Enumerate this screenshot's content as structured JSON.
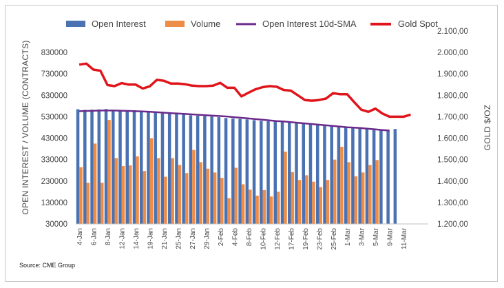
{
  "chart_data": {
    "type": "bar",
    "title": "",
    "source": "Source: CME Group",
    "ylabel_left": "OPEN INTEREST / VOLUME (CONTRACTS)",
    "ylabel_right": "GOLD $/OZ",
    "ylim_left": [
      30000,
      930000
    ],
    "ylim_right": [
      1200,
      2100
    ],
    "left_ticks": [
      30000,
      130000,
      230000,
      330000,
      430000,
      530000,
      630000,
      730000,
      830000
    ],
    "left_tick_labels": [
      "30000",
      "130000",
      "230000",
      "330000",
      "430000",
      "530000",
      "630000",
      "730000",
      "830000"
    ],
    "right_ticks": [
      1200,
      1300,
      1400,
      1500,
      1600,
      1700,
      1800,
      1900,
      2000,
      2100
    ],
    "right_tick_labels": [
      "1.200,00",
      "1.300,00",
      "1.400,00",
      "1.500,00",
      "1.600,00",
      "1.700,00",
      "1.800,00",
      "1.900,00",
      "2.000,00",
      "2.100,00"
    ],
    "x_tick_labels": [
      "4-Jan",
      "6-Jan",
      "8-Jan",
      "12-Jan",
      "14-Jan",
      "19-Jan",
      "21-Jan",
      "25-Jan",
      "27-Jan",
      "29-Jan",
      "2-Feb",
      "4-Feb",
      "8-Feb",
      "10-Feb",
      "12-Feb",
      "17-Feb",
      "19-Feb",
      "23-Feb",
      "25-Feb",
      "1-Mar",
      "3-Mar",
      "5-Mar",
      "9-Mar",
      "11-Mar"
    ],
    "legend": [
      "Open Interest",
      "Volume",
      "Open Interest 10d-SMA",
      "Gold Spot"
    ],
    "legend_position": "top",
    "grid": false,
    "colors": {
      "open_interest": "#4a72b2",
      "volume": "#ed8d47",
      "sma": "#6a2a8a",
      "gold": "#e0141b"
    },
    "total_slots": 50,
    "series": [
      {
        "name": "Open Interest",
        "kind": "bar",
        "axis": "left",
        "values": [
          565000,
          562000,
          563000,
          564000,
          566000,
          562000,
          561000,
          560000,
          560000,
          556000,
          553000,
          549000,
          548000,
          545000,
          544000,
          540000,
          537000,
          535000,
          533000,
          531000,
          528000,
          524000,
          522000,
          520000,
          518000,
          514000,
          511000,
          509000,
          508000,
          506000,
          505000,
          502000,
          500000,
          497000,
          494000,
          491000,
          488000,
          484000,
          480000,
          478000,
          475000,
          472000,
          470000,
          468000,
          466000,
          473000
        ]
      },
      {
        "name": "Volume",
        "kind": "bar",
        "axis": "left",
        "values": [
          295000,
          222000,
          405000,
          222000,
          515000,
          337000,
          300000,
          303000,
          345000,
          277000,
          430000,
          337000,
          250000,
          337000,
          305000,
          267000,
          375000,
          318000,
          288000,
          270000,
          245000,
          150000,
          292000,
          215000,
          190000,
          162000,
          188000,
          158000,
          180000,
          367000,
          272000,
          235000,
          257000,
          227000,
          202000,
          235000,
          330000,
          390000,
          318000,
          252000,
          270000,
          305000,
          328000
        ]
      },
      {
        "name": "Open Interest 10d-SMA",
        "kind": "line",
        "axis": "left",
        "values": [
          556000,
          557000,
          558000,
          559000,
          559000,
          559000,
          558000,
          557000,
          556000,
          555000,
          553000,
          551000,
          549000,
          547000,
          545000,
          543000,
          541000,
          539000,
          537000,
          535000,
          533000,
          531000,
          528000,
          525000,
          522000,
          519000,
          516000,
          513000,
          510000,
          508000,
          505000,
          502000,
          499000,
          496000,
          493000,
          490000,
          487000,
          484000,
          481000,
          479000,
          477000,
          474000,
          471000,
          468000,
          466000
        ]
      },
      {
        "name": "Gold Spot",
        "kind": "line",
        "axis": "right",
        "values": [
          1943,
          1948,
          1920,
          1915,
          1848,
          1843,
          1857,
          1850,
          1850,
          1832,
          1842,
          1872,
          1868,
          1855,
          1855,
          1852,
          1845,
          1843,
          1843,
          1845,
          1858,
          1835,
          1835,
          1795,
          1812,
          1828,
          1838,
          1843,
          1840,
          1825,
          1822,
          1800,
          1778,
          1775,
          1778,
          1785,
          1810,
          1805,
          1805,
          1768,
          1733,
          1723,
          1738,
          1715,
          1700,
          1700,
          1700,
          1710
        ]
      }
    ]
  }
}
